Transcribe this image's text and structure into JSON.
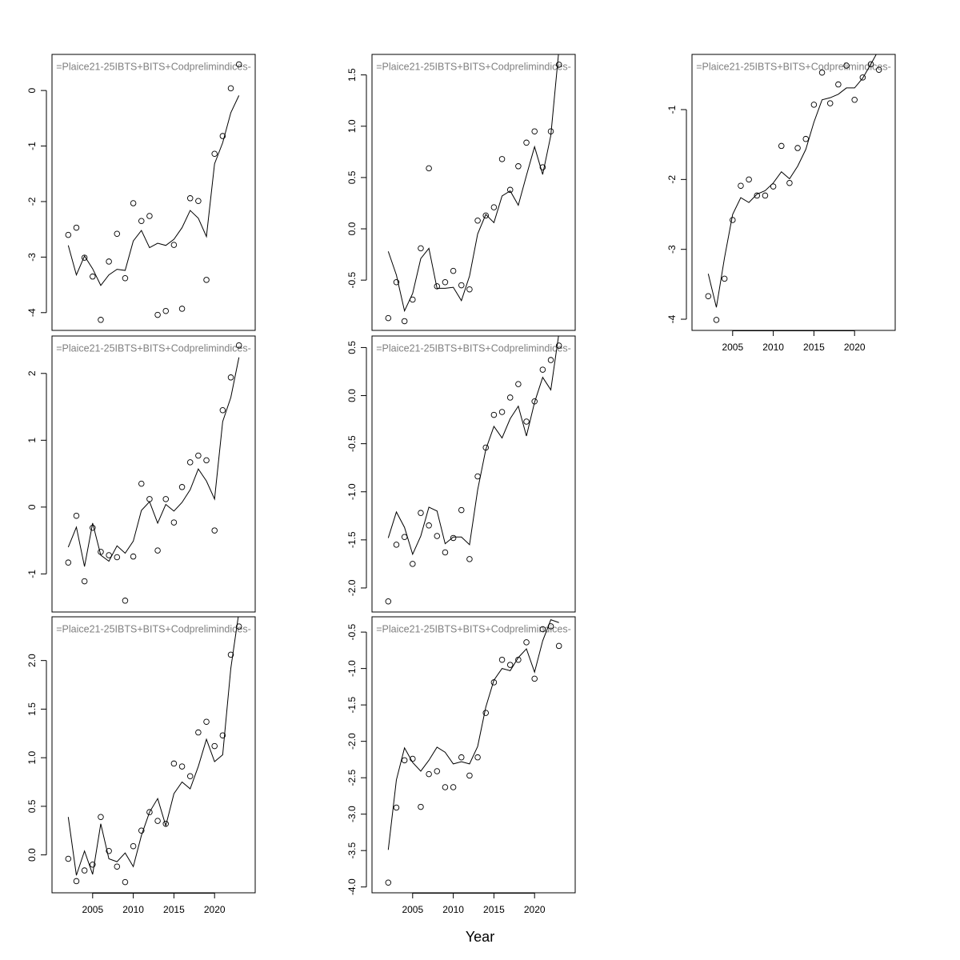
{
  "xlabel": "Year",
  "chart_data": [
    {
      "type": "line",
      "title": "=Plaice21-25IBTS+BITS+Codprelimindices-",
      "x": [
        2002,
        2003,
        2004,
        2005,
        2006,
        2007,
        2008,
        2009,
        2010,
        2011,
        2012,
        2013,
        2014,
        2015,
        2016,
        2017,
        2018,
        2019,
        2020,
        2021,
        2022,
        2023
      ],
      "xlim": [
        2000,
        2025
      ],
      "ylim": [
        -4.32,
        0.65
      ],
      "yticks": [
        -4,
        -3,
        -2,
        -1,
        0
      ],
      "series": [
        {
          "mode": "points",
          "color": "#000000",
          "values": [
            -2.6,
            -2.47,
            -3.01,
            -3.35,
            -4.13,
            -3.08,
            -2.58,
            -3.38,
            -2.03,
            -2.35,
            -2.26,
            -4.04,
            -3.97,
            -2.78,
            -3.93,
            -1.94,
            -1.99,
            -3.41,
            -1.14,
            -0.82,
            0.04,
            0.47
          ]
        },
        {
          "mode": "line",
          "color": "#000000",
          "values": [
            -2.79,
            -3.32,
            -2.98,
            -3.21,
            -3.51,
            -3.32,
            -3.22,
            -3.24,
            -2.71,
            -2.52,
            -2.83,
            -2.75,
            -2.79,
            -2.68,
            -2.47,
            -2.16,
            -2.3,
            -2.63,
            -1.32,
            -0.94,
            -0.4,
            -0.09
          ]
        }
      ]
    },
    {
      "type": "line",
      "title": "=Plaice21-25IBTS+BITS+Codprelimindices-",
      "x": [
        2002,
        2003,
        2004,
        2005,
        2006,
        2007,
        2008,
        2009,
        2010,
        2011,
        2012,
        2013,
        2014,
        2015,
        2016,
        2017,
        2018,
        2019,
        2020,
        2021,
        2022,
        2023
      ],
      "xlim": [
        2000,
        2025
      ],
      "ylim": [
        -1.57,
        2.56
      ],
      "yticks": [
        -1,
        0,
        1,
        2
      ],
      "series": [
        {
          "mode": "points",
          "color": "#000000",
          "values": [
            -0.83,
            -0.13,
            -1.11,
            -0.31,
            -0.67,
            -0.72,
            -0.75,
            -1.4,
            -0.74,
            0.35,
            0.12,
            -0.65,
            0.12,
            -0.23,
            0.3,
            0.67,
            0.77,
            0.7,
            -0.35,
            1.45,
            1.94,
            2.42
          ]
        },
        {
          "mode": "line",
          "color": "#000000",
          "values": [
            -0.6,
            -0.3,
            -0.89,
            -0.24,
            -0.72,
            -0.81,
            -0.58,
            -0.69,
            -0.51,
            -0.05,
            0.08,
            -0.24,
            0.04,
            -0.06,
            0.07,
            0.26,
            0.57,
            0.39,
            0.12,
            1.28,
            1.64,
            2.24
          ]
        }
      ]
    },
    {
      "type": "line",
      "title": "=Plaice21-25IBTS+BITS+Codprelimindices-",
      "x": [
        2002,
        2003,
        2004,
        2005,
        2006,
        2007,
        2008,
        2009,
        2010,
        2011,
        2012,
        2013,
        2014,
        2015,
        2016,
        2017,
        2018,
        2019,
        2020,
        2021,
        2022,
        2023
      ],
      "xlim": [
        2000,
        2025
      ],
      "xticks": [
        2005,
        2010,
        2015,
        2020
      ],
      "ylim": [
        -0.39,
        2.45
      ],
      "yticks": [
        {
          "value": 0,
          "label": "0.0"
        },
        0.5,
        {
          "value": 1,
          "label": "1.0"
        },
        1.5,
        {
          "value": 2,
          "label": "2.0"
        }
      ],
      "series": [
        {
          "mode": "points",
          "color": "#000000",
          "values": [
            -0.04,
            -0.27,
            -0.16,
            -0.1,
            0.39,
            0.04,
            -0.12,
            -0.28,
            0.09,
            0.25,
            0.44,
            0.35,
            0.32,
            0.94,
            0.91,
            0.81,
            1.26,
            1.37,
            1.12,
            1.23,
            2.06,
            2.35
          ]
        },
        {
          "mode": "line",
          "color": "#000000",
          "values": [
            0.39,
            -0.21,
            0.04,
            -0.2,
            0.32,
            -0.04,
            -0.07,
            0.02,
            -0.12,
            0.2,
            0.44,
            0.58,
            0.3,
            0.63,
            0.75,
            0.68,
            0.91,
            1.19,
            0.96,
            1.03,
            1.92,
            2.5
          ]
        }
      ]
    },
    {
      "type": "line",
      "title": "=Plaice21-25IBTS+BITS+Codprelimindices-",
      "x": [
        2002,
        2003,
        2004,
        2005,
        2006,
        2007,
        2008,
        2009,
        2010,
        2011,
        2012,
        2013,
        2014,
        2015,
        2016,
        2017,
        2018,
        2019,
        2020,
        2021,
        2022,
        2023
      ],
      "xlim": [
        2000,
        2025
      ],
      "ylim": [
        -0.99,
        1.7
      ],
      "yticks": [
        -0.5,
        {
          "value": 0,
          "label": "0.0"
        },
        0.5,
        {
          "value": 1,
          "label": "1.0"
        },
        1.5
      ],
      "series": [
        {
          "mode": "points",
          "color": "#000000",
          "values": [
            -0.87,
            -0.52,
            -0.9,
            -0.69,
            -0.19,
            0.59,
            -0.56,
            -0.52,
            -0.41,
            -0.55,
            -0.59,
            0.08,
            0.13,
            0.21,
            0.68,
            0.38,
            0.61,
            0.84,
            0.95,
            0.6,
            0.95,
            1.6
          ]
        },
        {
          "mode": "line",
          "color": "#000000",
          "values": [
            -0.22,
            -0.45,
            -0.8,
            -0.63,
            -0.29,
            -0.19,
            -0.58,
            -0.58,
            -0.57,
            -0.7,
            -0.46,
            -0.05,
            0.14,
            0.06,
            0.32,
            0.37,
            0.23,
            0.52,
            0.8,
            0.53,
            0.91,
            1.75
          ]
        }
      ]
    },
    {
      "type": "line",
      "title": "=Plaice21-25IBTS+BITS+Codprelimindices-",
      "x": [
        2002,
        2003,
        2004,
        2005,
        2006,
        2007,
        2008,
        2009,
        2010,
        2011,
        2012,
        2013,
        2014,
        2015,
        2016,
        2017,
        2018,
        2019,
        2020,
        2021,
        2022,
        2023
      ],
      "xlim": [
        2000,
        2025
      ],
      "ylim": [
        -2.25,
        0.62
      ],
      "yticks": [
        {
          "value": -2,
          "label": "-2.0"
        },
        -1.5,
        {
          "value": -1,
          "label": "-1.0"
        },
        -0.5,
        {
          "value": 0,
          "label": "0.0"
        },
        0.5
      ],
      "series": [
        {
          "mode": "points",
          "color": "#000000",
          "values": [
            -2.14,
            -1.55,
            -1.47,
            -1.75,
            -1.22,
            -1.35,
            -1.46,
            -1.63,
            -1.48,
            -1.19,
            -1.7,
            -0.84,
            -0.54,
            -0.2,
            -0.17,
            -0.02,
            0.12,
            -0.27,
            -0.06,
            0.27,
            0.37,
            0.52
          ]
        },
        {
          "mode": "line",
          "color": "#000000",
          "values": [
            -1.48,
            -1.21,
            -1.37,
            -1.65,
            -1.46,
            -1.16,
            -1.2,
            -1.54,
            -1.47,
            -1.47,
            -1.55,
            -0.98,
            -0.56,
            -0.32,
            -0.44,
            -0.24,
            -0.11,
            -0.42,
            -0.07,
            0.19,
            0.06,
            0.65
          ]
        }
      ]
    },
    {
      "type": "line",
      "title": "=Plaice21-25IBTS+BITS+Codprelimindices-",
      "x": [
        2002,
        2003,
        2004,
        2005,
        2006,
        2007,
        2008,
        2009,
        2010,
        2011,
        2012,
        2013,
        2014,
        2015,
        2016,
        2017,
        2018,
        2019,
        2020,
        2021,
        2022,
        2023
      ],
      "xlim": [
        2000,
        2025
      ],
      "xticks": [
        2005,
        2010,
        2015,
        2020
      ],
      "ylim": [
        -4.08,
        -0.29
      ],
      "yticks": [
        {
          "value": -4,
          "label": "-4.0"
        },
        -3.5,
        {
          "value": -3,
          "label": "-3.0"
        },
        -2.5,
        {
          "value": -2,
          "label": "-2.0"
        },
        -1.5,
        {
          "value": -1,
          "label": "-1.0"
        },
        -0.5
      ],
      "series": [
        {
          "mode": "points",
          "color": "#000000",
          "values": [
            -3.94,
            -2.91,
            -2.26,
            -2.24,
            -2.9,
            -2.45,
            -2.41,
            -2.63,
            -2.63,
            -2.22,
            -2.47,
            -2.22,
            -1.61,
            -1.19,
            -0.88,
            -0.95,
            -0.88,
            -0.64,
            -1.14,
            -0.46,
            -0.42,
            -0.69
          ]
        },
        {
          "mode": "line",
          "color": "#000000",
          "values": [
            -3.49,
            -2.53,
            -2.09,
            -2.29,
            -2.41,
            -2.26,
            -2.08,
            -2.15,
            -2.31,
            -2.28,
            -2.31,
            -2.07,
            -1.53,
            -1.16,
            -1.0,
            -1.03,
            -0.85,
            -0.73,
            -1.05,
            -0.62,
            -0.33,
            -0.37
          ]
        }
      ]
    },
    {
      "type": "line",
      "title": "=Plaice21-25IBTS+BITS+Codprelimindices-",
      "x": [
        2002,
        2003,
        2004,
        2005,
        2006,
        2007,
        2008,
        2009,
        2010,
        2011,
        2012,
        2013,
        2014,
        2015,
        2016,
        2017,
        2018,
        2019,
        2020,
        2021,
        2022,
        2023
      ],
      "xlim": [
        2000,
        2025
      ],
      "xticks": [
        2005,
        2010,
        2015,
        2020
      ],
      "ylim": [
        -4.16,
        -0.21
      ],
      "yticks": [
        -4,
        -3,
        -2,
        -1
      ],
      "series": [
        {
          "mode": "points",
          "color": "#000000",
          "values": [
            -3.67,
            -4.01,
            -3.42,
            -2.58,
            -2.09,
            -2.0,
            -2.23,
            -2.23,
            -2.1,
            -1.52,
            -2.05,
            -1.55,
            -1.42,
            -0.93,
            -0.47,
            -0.91,
            -0.64,
            -0.37,
            -0.86,
            -0.54,
            -0.35,
            -0.43
          ]
        },
        {
          "mode": "line",
          "color": "#000000",
          "values": [
            -3.35,
            -3.83,
            -3.12,
            -2.5,
            -2.26,
            -2.33,
            -2.21,
            -2.16,
            -2.05,
            -1.89,
            -1.99,
            -1.81,
            -1.57,
            -1.18,
            -0.86,
            -0.83,
            -0.78,
            -0.69,
            -0.69,
            -0.55,
            -0.35,
            -0.14
          ]
        }
      ]
    }
  ]
}
